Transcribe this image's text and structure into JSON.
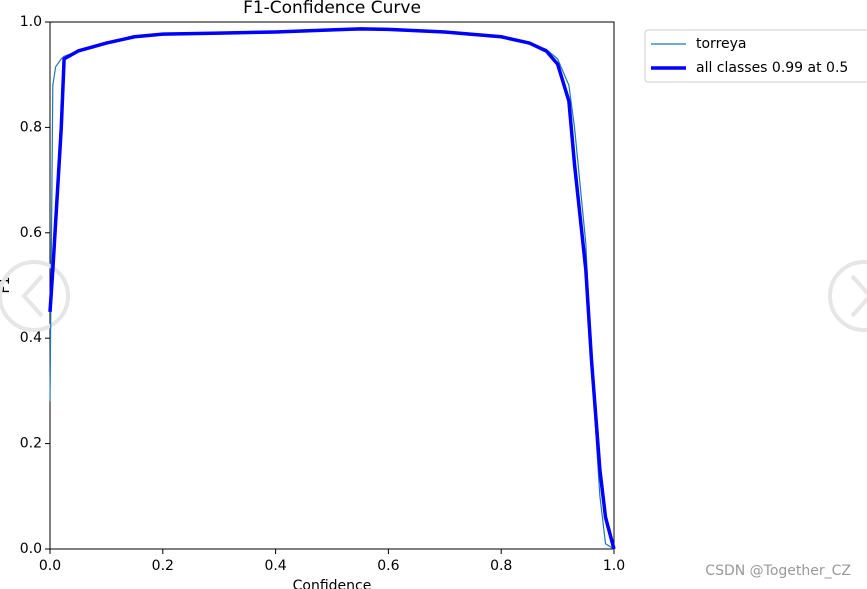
{
  "chart_data": {
    "type": "line",
    "title": "F1-Confidence Curve",
    "x_label": "Confidence",
    "y_label": "F1",
    "x": [
      0,
      0.005,
      0.01,
      0.02,
      0.025,
      0.05,
      0.1,
      0.15,
      0.2,
      0.3,
      0.4,
      0.5,
      0.55,
      0.6,
      0.7,
      0.8,
      0.85,
      0.88,
      0.9,
      0.92,
      0.93,
      0.95,
      0.96,
      0.975,
      0.985,
      1.0
    ],
    "series": [
      {
        "name": "torreya",
        "color": "#1f77b4",
        "width": 1.2,
        "values": [
          0.28,
          0.88,
          0.915,
          0.93,
          0.935,
          0.945,
          0.96,
          0.972,
          0.977,
          0.979,
          0.981,
          0.985,
          0.987,
          0.986,
          0.981,
          0.972,
          0.96,
          0.948,
          0.93,
          0.88,
          0.8,
          0.58,
          0.35,
          0.1,
          0.01,
          0.0
        ]
      },
      {
        "name": "all classes 0.99 at 0.5",
        "color": "#0000ff",
        "width": 3.5,
        "values": [
          0.45,
          0.53,
          0.62,
          0.8,
          0.93,
          0.945,
          0.96,
          0.972,
          0.977,
          0.979,
          0.981,
          0.985,
          0.987,
          0.986,
          0.981,
          0.972,
          0.96,
          0.945,
          0.92,
          0.85,
          0.73,
          0.53,
          0.36,
          0.15,
          0.06,
          0.0
        ]
      }
    ],
    "xlim": [
      0,
      1
    ],
    "ylim": [
      0,
      1
    ],
    "xticks": [
      {
        "value": 0,
        "label": "0.0"
      },
      0.2,
      0.4,
      0.6,
      0.8,
      {
        "value": 1,
        "label": "1.0"
      }
    ],
    "yticks": [
      {
        "value": 0,
        "label": "0.0"
      },
      0.2,
      0.4,
      0.6,
      0.8,
      {
        "value": 1,
        "label": "1.0"
      }
    ],
    "legend": "outside-right"
  },
  "watermark": "CSDN @Together_CZ"
}
